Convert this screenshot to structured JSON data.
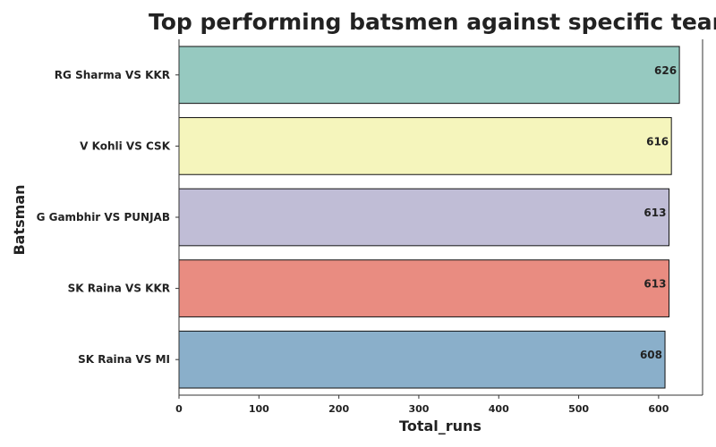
{
  "chart_data": {
    "type": "bar",
    "orientation": "horizontal",
    "title": "Top performing batsmen against specific team",
    "xlabel": "Total_runs",
    "ylabel": "Batsman",
    "categories": [
      "RG Sharma VS KKR",
      "V Kohli VS CSK",
      "G Gambhir VS PUNJAB",
      "SK Raina VS KKR",
      "SK Raina VS MI"
    ],
    "values": [
      626,
      616,
      613,
      613,
      608
    ],
    "data_labels": [
      "626",
      "616",
      "613",
      "613",
      "608"
    ],
    "colors": [
      "#96c9c0",
      "#f5f5bc",
      "#c0bdd6",
      "#e98c81",
      "#8aafca"
    ],
    "xlim": [
      0,
      655
    ],
    "xticks": [
      0,
      100,
      200,
      300,
      400,
      500,
      600
    ],
    "xtick_labels": [
      "0",
      "100",
      "200",
      "300",
      "400",
      "500",
      "600"
    ],
    "grid": false,
    "legend": "none"
  }
}
